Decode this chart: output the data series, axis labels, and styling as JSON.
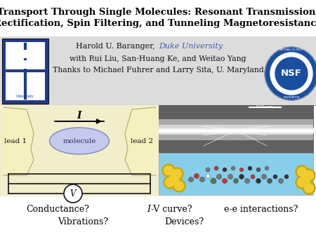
{
  "title_line1": "Transport Through Single Molecules: Resonant Transmission,",
  "title_line2": "Rectification, Spin Filtering, and Tunneling Magnetoresistance",
  "author_pre": "Harold U. Baranger, ",
  "author_duke": "Duke University",
  "collab_line": "with Rui Liu, San-Huang Ke, and Weitao Yang",
  "thanks_line": "Thanks to Michael Fuhrer and Larry Sita, U. Maryland",
  "bottom_line1_left": "Conductance?",
  "bottom_line1_mid_i": "I",
  "bottom_line1_mid_v": "-V curve?",
  "bottom_line1_right": "e-e interactions?",
  "bottom_line2_left": "Vibrations?",
  "bottom_line2_mid": "Devices?",
  "label_lead1": "lead 1",
  "label_molecule": "molecule",
  "label_lead2": "lead 2",
  "label_I": "I",
  "label_V": "V",
  "bg_color": "#ffffff",
  "title_color": "#000000",
  "duke_color": "#3a5dae",
  "lead_fill": "#f5f0c0",
  "lead_edge": "#b0a870",
  "molecule_fill": "#c5caec",
  "molecule_edge": "#8085bb",
  "header_bg": "#dcdcdc",
  "diagram_bg": "#f2eecc",
  "sem_bg": "#888888",
  "mol_model_bg": "#87ceeb",
  "gold_outer": "#c8a800",
  "gold_inner": "#f0cc30"
}
